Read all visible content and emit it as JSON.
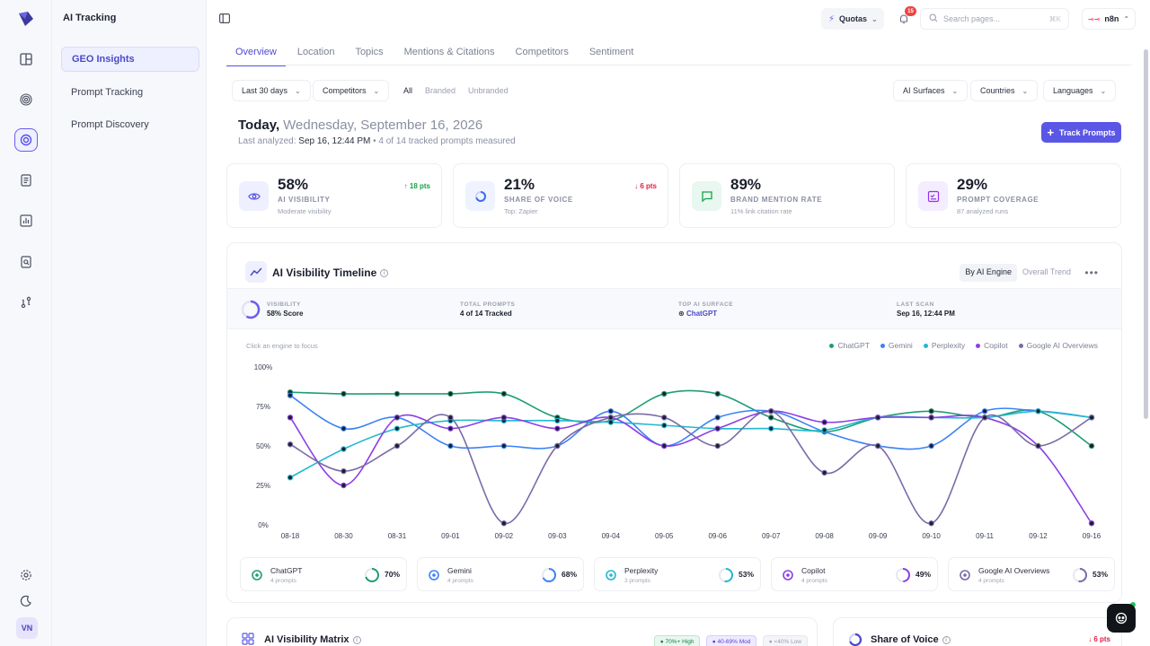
{
  "app": {
    "section_title": "AI Tracking",
    "avatar": "VN"
  },
  "subnav": {
    "items": [
      {
        "label": "GEO Insights"
      },
      {
        "label": "Prompt Tracking"
      },
      {
        "label": "Prompt Discovery"
      }
    ]
  },
  "topbar": {
    "quotas_label": "Quotas",
    "notifications_count": "15",
    "search_placeholder": "Search pages...",
    "search_shortcut": "⌘K",
    "workspace": "n8n"
  },
  "tabs": [
    "Overview",
    "Location",
    "Topics",
    "Mentions & Citations",
    "Competitors",
    "Sentiment"
  ],
  "filters": {
    "date_range": "Last 30 days",
    "competitors": "Competitors",
    "segments": [
      "All",
      "Branded",
      "Unbranded"
    ],
    "ai_surfaces": "AI Surfaces",
    "countries": "Countries",
    "languages": "Languages"
  },
  "header": {
    "today": "Today,",
    "date": "Wednesday, September 16, 2026",
    "last_analyzed_label": "Last analyzed:",
    "last_analyzed_value": "Sep 16, 12:44 PM",
    "measured": "• 4 of 14 tracked prompts measured",
    "track_button": "Track Prompts"
  },
  "kpis": [
    {
      "value": "58%",
      "label": "AI VISIBILITY",
      "hint": "Moderate visibility",
      "delta": "↑ 18 pts",
      "delta_color": "#16a34a"
    },
    {
      "value": "21%",
      "label": "SHARE OF VOICE",
      "hint": "Top: Zapier",
      "delta": "↓ 6 pts",
      "delta_color": "#e11d48"
    },
    {
      "value": "89%",
      "label": "BRAND MENTION RATE",
      "hint": "11% link citation rate",
      "delta": "",
      "delta_color": ""
    },
    {
      "value": "29%",
      "label": "PROMPT COVERAGE",
      "hint": "87 analyzed runs",
      "delta": "",
      "delta_color": ""
    }
  ],
  "timeline": {
    "title": "AI Visibility Timeline",
    "toggle": [
      "By AI Engine",
      "Overall Trend"
    ],
    "stats": [
      {
        "key": "VISIBILITY",
        "value": "58% Score"
      },
      {
        "key": "TOTAL PROMPTS",
        "value": "4 of 14 Tracked"
      },
      {
        "key": "TOP AI SURFACE",
        "value": "ChatGPT"
      },
      {
        "key": "LAST SCAN",
        "value": "Sep 16, 12:44 PM"
      }
    ],
    "hint": "Click an engine to focus"
  },
  "chart_data": {
    "type": "line",
    "x": [
      "08-18",
      "08-30",
      "08-31",
      "09-01",
      "09-02",
      "09-03",
      "09-04",
      "09-05",
      "09-06",
      "09-07",
      "09-08",
      "09-09",
      "09-10",
      "09-11",
      "09-12",
      "09-16"
    ],
    "y_ticks": [
      "100%",
      "75%",
      "50%",
      "25%",
      "0%"
    ],
    "ylim": [
      0,
      100
    ],
    "legend_position": "top-right",
    "series": [
      {
        "name": "ChatGPT",
        "color": "#1f9d74",
        "values": [
          84,
          83,
          83,
          83,
          83,
          68,
          66,
          83,
          83,
          68,
          59,
          68,
          72,
          68,
          72,
          50
        ]
      },
      {
        "name": "Gemini",
        "color": "#3b82f6",
        "values": [
          82,
          61,
          68,
          50,
          50,
          50,
          72,
          50,
          68,
          72,
          59,
          50,
          50,
          72,
          72,
          68
        ]
      },
      {
        "name": "Perplexity",
        "color": "#22b8cf",
        "values": [
          30,
          48,
          61,
          66,
          66,
          66,
          65,
          63,
          61,
          61,
          60,
          68,
          68,
          68,
          72,
          68
        ]
      },
      {
        "name": "Copilot",
        "color": "#8b3fe6",
        "values": [
          68,
          25,
          68,
          61,
          68,
          61,
          68,
          50,
          61,
          72,
          65,
          68,
          68,
          68,
          50,
          1
        ]
      },
      {
        "name": "Google AI Overviews",
        "color": "#7a6aa8",
        "values": [
          51,
          34,
          50,
          68,
          1,
          50,
          68,
          68,
          50,
          72,
          33,
          50,
          1,
          68,
          50,
          68
        ]
      }
    ]
  },
  "engine_cards": [
    {
      "name": "ChatGPT",
      "prompts": "4 prompts",
      "pct": "70%",
      "value": 70,
      "color": "#1f9d74"
    },
    {
      "name": "Gemini",
      "prompts": "4 prompts",
      "pct": "68%",
      "value": 68,
      "color": "#3b82f6"
    },
    {
      "name": "Perplexity",
      "prompts": "3 prompts",
      "pct": "53%",
      "value": 53,
      "color": "#22b8cf"
    },
    {
      "name": "Copilot",
      "prompts": "4 prompts",
      "pct": "49%",
      "value": 49,
      "color": "#8b3fe6"
    },
    {
      "name": "Google AI Overviews",
      "prompts": "4 prompts",
      "pct": "53%",
      "value": 53,
      "color": "#7a6aa8"
    }
  ],
  "matrix": {
    "title": "AI Visibility Matrix",
    "legend": [
      "70%+ High",
      "40-69% Mod",
      "<40% Low"
    ]
  },
  "share_of_voice": {
    "title": "Share of Voice",
    "delta": "↓ 6 pts"
  }
}
